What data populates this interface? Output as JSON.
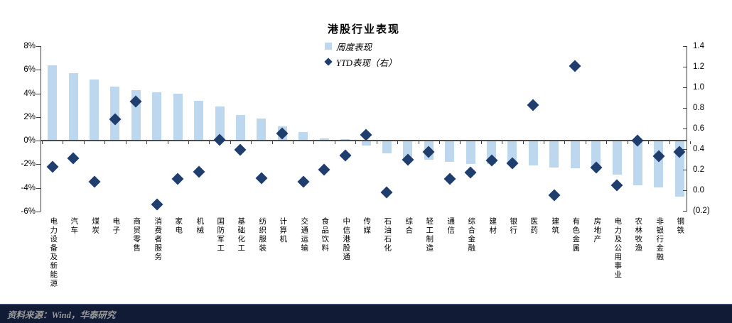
{
  "title": "港股行业表现",
  "legend": [
    {
      "label": "周度表现",
      "marker": "square"
    },
    {
      "label": "YTD表现（右）",
      "marker": "diamond"
    }
  ],
  "footer": {
    "source_text": "资料来源：Wind，华泰研究"
  },
  "colors": {
    "bar_fill": "#BCD7EE",
    "diamond": "#1F3E6E",
    "axis_line": "#404040",
    "baseline": "#4D4D4D",
    "footer_bg": "#111B36",
    "footer_text": "#9A9A9A"
  },
  "chart_data": {
    "type": "bar",
    "title": "港股行业表现",
    "grid": false,
    "legend_position": "top-center",
    "categories": [
      "电力设备及新能源",
      "汽车",
      "煤炭",
      "电子",
      "商贸零售",
      "消费者服务",
      "家电",
      "机械",
      "国防军工",
      "基础化工",
      "纺织服装",
      "计算机",
      "交通运输",
      "食品饮料",
      "中信港股通",
      "传媒",
      "石油石化",
      "综合",
      "轻工制造",
      "通信",
      "综合金融",
      "建材",
      "银行",
      "医药",
      "建筑",
      "有色金属",
      "房地产",
      "电力及公用事业",
      "农林牧渔",
      "非银行金融",
      "钢铁"
    ],
    "series": [
      {
        "name": "周度表现",
        "type": "bar",
        "axis": "left",
        "unit": "%",
        "values": [
          6.4,
          5.7,
          5.2,
          4.6,
          4.3,
          4.1,
          4.0,
          3.4,
          2.9,
          2.2,
          1.85,
          1.2,
          0.7,
          0.2,
          0.1,
          -0.4,
          -1.1,
          -1.6,
          -1.6,
          -1.8,
          -2.0,
          -2.0,
          -2.05,
          -2.1,
          -2.3,
          -2.35,
          -2.4,
          -2.9,
          -3.8,
          -3.95,
          -4.75
        ]
      },
      {
        "name": "YTD表现（右）",
        "type": "scatter",
        "marker": "diamond",
        "axis": "right",
        "values": [
          0.23,
          0.31,
          0.08,
          0.69,
          0.86,
          -0.14,
          0.11,
          0.18,
          0.49,
          0.39,
          0.12,
          0.55,
          0.08,
          0.2,
          0.34,
          0.54,
          -0.02,
          0.3,
          0.37,
          0.11,
          0.17,
          0.29,
          0.26,
          0.83,
          -0.05,
          1.21,
          0.22,
          0.05,
          0.48,
          0.33,
          0.37
        ]
      }
    ],
    "left_axis": {
      "min": -6,
      "max": 8,
      "tick_labels": [
        "8%",
        "6%",
        "4%",
        "2%",
        "0%",
        "-2%",
        "-4%",
        "-6%"
      ]
    },
    "right_axis": {
      "min": -0.2,
      "max": 1.4,
      "tick_labels": [
        "1.4",
        "1.2",
        "1.0",
        "0.8",
        "0.6",
        "0.4",
        "0.2",
        "0.0",
        "(0.2)"
      ]
    }
  }
}
